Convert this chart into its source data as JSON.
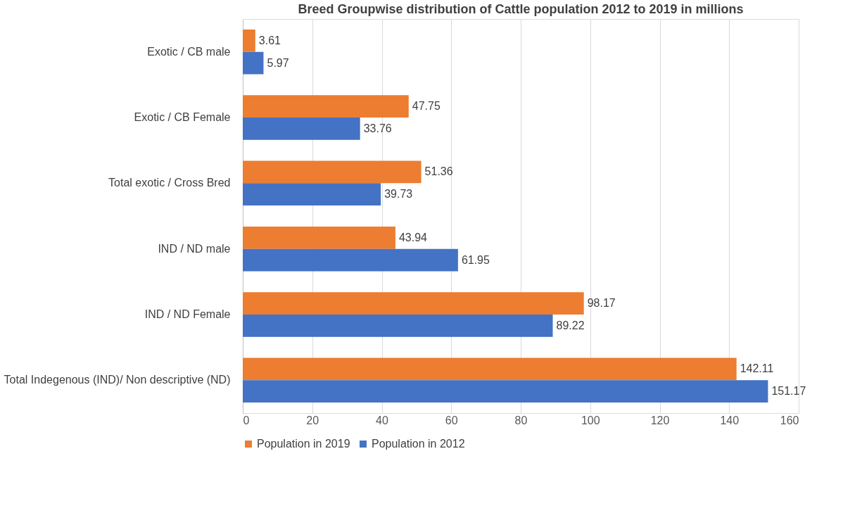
{
  "chart_data": {
    "type": "bar",
    "orientation": "horizontal",
    "title": "Breed Groupwise distribution of Cattle population 2012 to 2019 in millions",
    "categories": [
      "Exotic / CB male",
      "Exotic / CB Female",
      "Total exotic / Cross Bred",
      "IND / ND male",
      "IND / ND Female",
      "Total Indegenous (IND)/ Non descriptive (ND)"
    ],
    "series": [
      {
        "name": "Population in 2019",
        "color": "#ed7d31",
        "values": [
          3.61,
          47.75,
          51.36,
          43.94,
          98.17,
          142.11
        ]
      },
      {
        "name": "Population in 2012",
        "color": "#4472c4",
        "values": [
          5.97,
          33.76,
          39.73,
          61.95,
          89.22,
          151.17
        ]
      }
    ],
    "xlim": [
      0,
      160
    ],
    "xticks": [
      0,
      20,
      40,
      60,
      80,
      100,
      120,
      140,
      160
    ],
    "grid": "x",
    "legend": "bottom",
    "data_labels": true
  }
}
